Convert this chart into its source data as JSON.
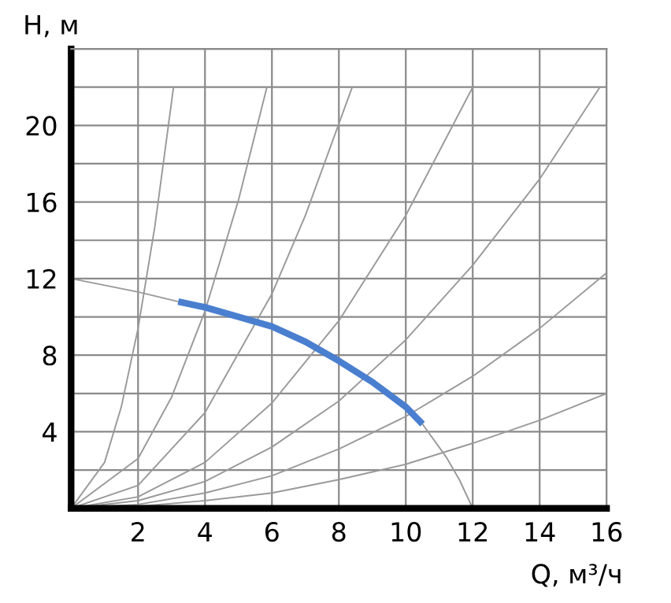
{
  "chart_data": {
    "type": "line",
    "xlabel": "Q, м³/ч",
    "ylabel": "H, м",
    "xlim": [
      0,
      16
    ],
    "ylim": [
      0,
      24
    ],
    "xticks": [
      {
        "value": 0,
        "label": null
      },
      2,
      4,
      6,
      8,
      10,
      12,
      14,
      16
    ],
    "yticks": [
      {
        "value": 0,
        "label": null
      },
      {
        "value": 2,
        "label": null
      },
      4,
      {
        "value": 6,
        "label": null
      },
      8,
      {
        "value": 10,
        "label": null
      },
      12,
      {
        "value": 14,
        "label": null
      },
      16,
      {
        "value": 18,
        "label": null
      },
      20,
      {
        "value": 22,
        "label": null
      },
      {
        "value": 24,
        "label": null
      }
    ],
    "grid": true,
    "legend": false,
    "marker": "none",
    "line_style": "solid",
    "series": [
      {
        "color": "#9a9a9a",
        "x": [
          0,
          1,
          1.5,
          2,
          2.5,
          3.06
        ],
        "values": [
          0,
          2.4,
          5.3,
          9.4,
          14.7,
          22
        ]
      },
      {
        "color": "#9a9a9a",
        "x": [
          0,
          2,
          3,
          4,
          5,
          5.85
        ],
        "values": [
          0,
          2.6,
          5.8,
          10.3,
          16.1,
          22
        ]
      },
      {
        "color": "#9a9a9a",
        "x": [
          0,
          2,
          4,
          6,
          7,
          8.4
        ],
        "values": [
          0,
          1.2,
          5,
          11.2,
          15.3,
          22
        ]
      },
      {
        "color": "#9a9a9a",
        "x": [
          0,
          2,
          4,
          6,
          8,
          10,
          12
        ],
        "values": [
          0,
          0.6,
          2.4,
          5.5,
          9.8,
          15.3,
          22
        ]
      },
      {
        "color": "#9a9a9a",
        "x": [
          0,
          2,
          4,
          6,
          8,
          10,
          12,
          14,
          15.8
        ],
        "values": [
          0,
          0.4,
          1.4,
          3.2,
          5.6,
          8.8,
          12.7,
          17.2,
          22
        ]
      },
      {
        "color": "#9a9a9a",
        "x": [
          0,
          2,
          4,
          6,
          8,
          10,
          12,
          14,
          16
        ],
        "values": [
          0,
          0.2,
          0.8,
          1.7,
          3.1,
          4.8,
          6.9,
          9.4,
          12.3
        ]
      },
      {
        "color": "#9a9a9a",
        "x": [
          0,
          2,
          4,
          6,
          8,
          10,
          12,
          14,
          16
        ],
        "values": [
          0,
          0.1,
          0.4,
          0.8,
          1.5,
          2.3,
          3.4,
          4.6,
          6
        ]
      },
      {
        "color": "#9a9a9a",
        "x": [
          0,
          2,
          3.2,
          4,
          6,
          8,
          10,
          10.5,
          11.2,
          11.6,
          12
        ],
        "values": [
          12,
          11.3,
          10.8,
          null,
          null,
          null,
          null,
          4.4,
          2.7,
          1.5,
          0
        ]
      },
      {
        "color": "#4a7fd0",
        "x": [
          3.2,
          4,
          5,
          6,
          7,
          8,
          9,
          10,
          10.5
        ],
        "values": [
          10.8,
          10.5,
          10,
          9.5,
          8.7,
          7.7,
          6.6,
          5.3,
          4.4
        ]
      }
    ]
  }
}
